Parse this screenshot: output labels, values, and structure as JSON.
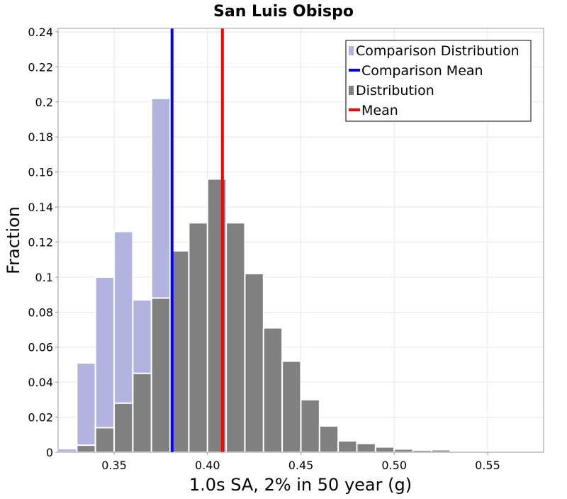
{
  "chart_data": {
    "type": "bar",
    "title": "San Luis Obispo",
    "xlabel": "1.0s SA, 2% in 50 year (g)",
    "ylabel": "Fraction",
    "xlim": [
      0.32,
      0.58
    ],
    "ylim": [
      0,
      0.242
    ],
    "bin_width": 0.01,
    "xticks": [
      0.35,
      0.4,
      0.45,
      0.5,
      0.55
    ],
    "xtick_labels": [
      "0.35",
      "0.40",
      "0.45",
      "0.50",
      "0.55"
    ],
    "yticks": [
      0,
      0.02,
      0.04,
      0.06,
      0.08,
      0.1,
      0.12,
      0.14,
      0.16,
      0.18,
      0.2,
      0.22,
      0.24
    ],
    "ytick_labels": [
      "0",
      "0.02",
      "0.04",
      "0.06",
      "0.08",
      "0.1",
      "0.12",
      "0.14",
      "0.16",
      "0.18",
      "0.2",
      "0.22",
      "0.24"
    ],
    "grid": true,
    "legend_position": "top-right",
    "series": [
      {
        "name": "Comparison Distribution",
        "kind": "histogram",
        "color": "#b3b3e0",
        "x": [
          0.32,
          0.33,
          0.34,
          0.35,
          0.36,
          0.37
        ],
        "values": [
          0.002,
          0.051,
          0.1,
          0.126,
          0.087,
          0.202
        ]
      },
      {
        "name": "Distribution",
        "kind": "histogram",
        "color": "#808080",
        "x": [
          0.33,
          0.34,
          0.35,
          0.36,
          0.37,
          0.38,
          0.39,
          0.4,
          0.41,
          0.42,
          0.43,
          0.44,
          0.45,
          0.46,
          0.47,
          0.48,
          0.49,
          0.5,
          0.51,
          0.52,
          0.53,
          0.54,
          0.55,
          0.56,
          0.57
        ],
        "values": [
          0.004,
          0.014,
          0.028,
          0.045,
          0.088,
          0.115,
          0.131,
          0.156,
          0.131,
          0.102,
          0.071,
          0.052,
          0.03,
          0.015,
          0.0065,
          0.005,
          0.003,
          0.0018,
          0.0012,
          0.0014,
          0.0008,
          0.0005,
          0.0006,
          0.0002,
          0.0002
        ]
      },
      {
        "name": "Comparison Mean",
        "kind": "vline",
        "color": "#0000ff",
        "x": 0.381
      },
      {
        "name": "Mean",
        "kind": "vline",
        "color": "#ff0000",
        "x": 0.408
      }
    ]
  }
}
